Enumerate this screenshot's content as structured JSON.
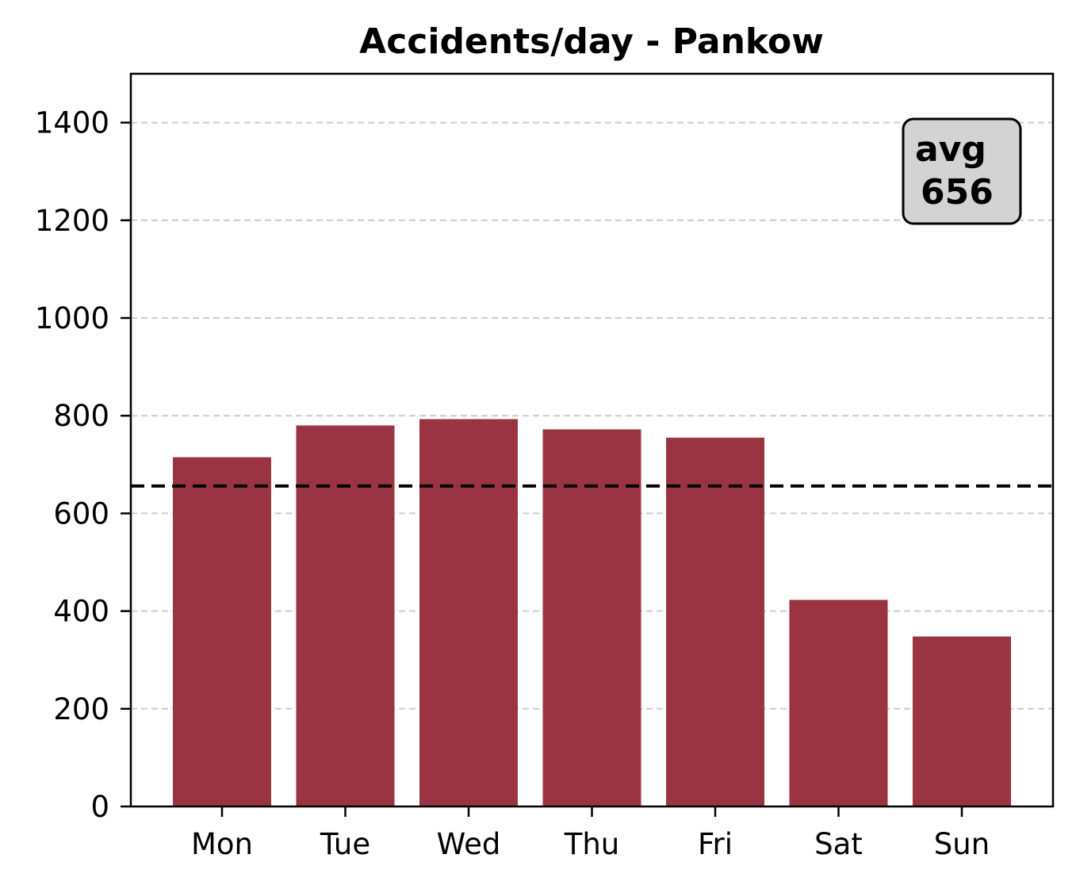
{
  "chart_data": {
    "type": "bar",
    "title": "Accidents/day - Pankow",
    "xlabel": "",
    "ylabel": "",
    "categories": [
      "Mon",
      "Tue",
      "Wed",
      "Thu",
      "Fri",
      "Sat",
      "Sun"
    ],
    "values": [
      715,
      780,
      793,
      772,
      755,
      423,
      348
    ],
    "ylim": [
      0,
      1500
    ],
    "yticks": [
      0,
      200,
      400,
      600,
      800,
      1000,
      1200,
      1400
    ],
    "grid": "y-dashed",
    "bar_color": "#9b3442",
    "average": {
      "value": 656,
      "label_line1": "avg",
      "label_line2": "656",
      "line_style": "dashed",
      "line_color": "#000000",
      "box_fill": "#d3d3d3",
      "box_position": "top-right"
    }
  }
}
